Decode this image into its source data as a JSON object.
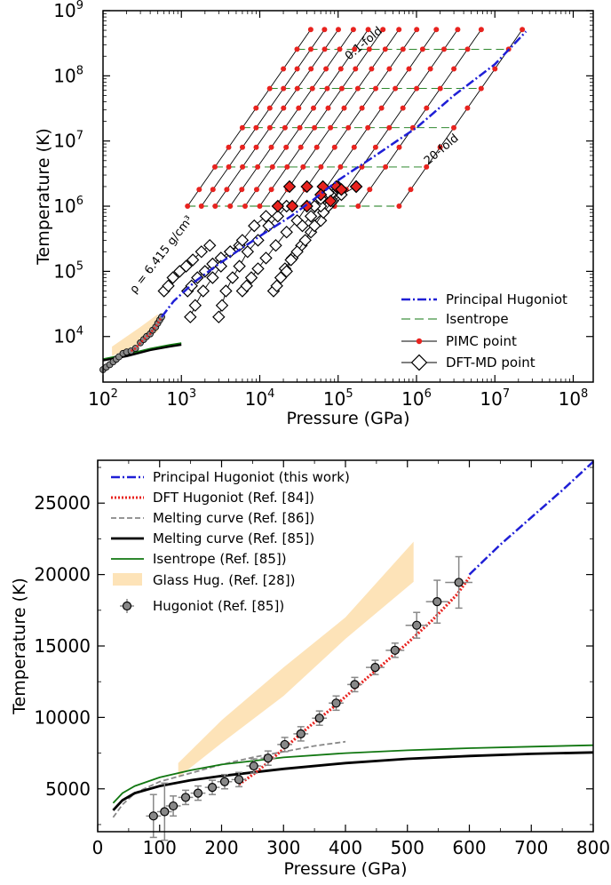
{
  "top": {
    "chart_data": {
      "type": "line",
      "xlabel": "Pressure (GPa)",
      "ylabel": "Temperature (K)",
      "xscale": "log",
      "yscale": "log",
      "xlim": [
        100,
        180000000
      ],
      "ylim": [
        2000,
        1000000000
      ],
      "x_ticks": [
        100,
        1000,
        10000,
        100000,
        1000000,
        10000000,
        100000000
      ],
      "y_ticks": [
        1000,
        10000,
        100000,
        1000000,
        10000000,
        100000000,
        1000000000
      ],
      "x_tick_labels": [
        {
          "base": "10",
          "exp": "2"
        },
        {
          "base": "10",
          "exp": "3"
        },
        {
          "base": "10",
          "exp": "4"
        },
        {
          "base": "10",
          "exp": "5"
        },
        {
          "base": "10",
          "exp": "6"
        },
        {
          "base": "10",
          "exp": "7"
        },
        {
          "base": "10",
          "exp": "8"
        }
      ],
      "y_tick_labels": [
        {
          "base": "10",
          "exp": "3"
        },
        {
          "base": "10",
          "exp": "4"
        },
        {
          "base": "10",
          "exp": "5"
        },
        {
          "base": "10",
          "exp": "6"
        },
        {
          "base": "10",
          "exp": "7"
        },
        {
          "base": "10",
          "exp": "8"
        },
        {
          "base": "10",
          "exp": "9"
        }
      ],
      "annotations": [
        {
          "text": "0.1-fold"
        },
        {
          "text": "20-fold"
        },
        {
          "text": "ρ = 6.415 g/cm³"
        }
      ],
      "legend": {
        "position": "lower-right",
        "entries": [
          "Principal Hugoniot",
          "Isentrope",
          "PIMC point",
          "DFT-MD point"
        ]
      },
      "colors": {
        "hugoniot": "#1f1fd6",
        "isentrope": "#117711",
        "pimc": "#e8231f",
        "glass": "#fde3b8"
      },
      "pimc_temperatures": [
        1000000,
        1800000,
        4000000,
        8000000,
        16000000,
        32000000,
        64000000,
        128000000,
        256000000,
        512000000
      ],
      "pimc_isochores_pressure_at_1e6K": [
        1200,
        1800,
        2700,
        4200,
        6500,
        10000,
        16000,
        27000,
        48000,
        90000,
        180000,
        600000
      ],
      "pimc_pressure_temperature_slope": 0.58,
      "dft_isochores": [
        [
          [
            600,
            50000
          ],
          [
            680,
            60000
          ],
          [
            780,
            80000
          ],
          [
            950,
            100000
          ],
          [
            1150,
            120000
          ],
          [
            1400,
            150000
          ],
          [
            1800,
            200000
          ],
          [
            2300,
            250000
          ]
        ],
        [
          [
            1200,
            50000
          ],
          [
            1350,
            60000
          ],
          [
            1600,
            80000
          ],
          [
            2000,
            100000
          ],
          [
            2500,
            130000
          ],
          [
            3200,
            160000
          ],
          [
            4200,
            200000
          ],
          [
            5500,
            250000
          ]
        ],
        [
          [
            1300,
            20000
          ],
          [
            1500,
            30000
          ],
          [
            1900,
            50000
          ],
          [
            2500,
            80000
          ],
          [
            3200,
            120000
          ],
          [
            4200,
            200000
          ],
          [
            6000,
            300000
          ],
          [
            8500,
            500000
          ],
          [
            12000,
            700000
          ]
        ],
        [
          [
            3000,
            20000
          ],
          [
            3300,
            30000
          ],
          [
            3700,
            50000
          ],
          [
            4500,
            80000
          ],
          [
            5500,
            120000
          ],
          [
            7000,
            200000
          ],
          [
            9500,
            300000
          ],
          [
            13000,
            500000
          ],
          [
            17000,
            700000
          ],
          [
            22000,
            1000000
          ]
        ],
        [
          [
            6000,
            50000
          ],
          [
            6800,
            60000
          ],
          [
            7800,
            80000
          ],
          [
            9500,
            110000
          ],
          [
            12000,
            160000
          ],
          [
            16000,
            250000
          ],
          [
            22000,
            400000
          ],
          [
            30000,
            600000
          ],
          [
            40000,
            1000000
          ]
        ],
        [
          [
            15000,
            50000
          ],
          [
            16500,
            60000
          ],
          [
            18500,
            80000
          ],
          [
            21000,
            110000
          ],
          [
            26000,
            160000
          ],
          [
            34000,
            250000
          ],
          [
            45000,
            400000
          ],
          [
            60000,
            600000
          ],
          [
            75000,
            1000000
          ],
          [
            110000,
            1500000
          ],
          [
            170000,
            2000000
          ]
        ],
        [
          [
            22000,
            100000
          ],
          [
            25000,
            150000
          ],
          [
            30000,
            200000
          ],
          [
            38000,
            300000
          ],
          [
            50000,
            500000
          ],
          [
            65000,
            800000
          ],
          [
            85000,
            1200000
          ],
          [
            110000,
            1800000
          ]
        ],
        [
          [
            35000,
            500000
          ],
          [
            45000,
            700000
          ],
          [
            60000,
            1000000
          ],
          [
            80000,
            1500000
          ],
          [
            100000,
            2000000
          ]
        ],
        [
          [
            50000,
            1000000
          ],
          [
            60000,
            1300000
          ],
          [
            75000,
            1600000
          ],
          [
            95000,
            2000000
          ]
        ]
      ],
      "dft_red_filled": [
        [
          17000,
          1000000
        ],
        [
          26000,
          1000000
        ],
        [
          40000,
          1000000
        ],
        [
          24000,
          2000000
        ],
        [
          40000,
          2000000
        ],
        [
          64000,
          2000000
        ],
        [
          95000,
          2000000
        ],
        [
          110000,
          1800000
        ],
        [
          170000,
          2000000
        ],
        [
          60000,
          1500000
        ],
        [
          80000,
          1200000
        ]
      ],
      "hugoniot_low": [
        [
          100,
          3100
        ],
        [
          110,
          3400
        ],
        [
          122,
          3700
        ],
        [
          135,
          4100
        ],
        [
          148,
          4500
        ],
        [
          160,
          4900
        ],
        [
          180,
          5500
        ],
        [
          200,
          5800
        ],
        [
          228,
          6000
        ],
        [
          260,
          6600
        ],
        [
          300,
          8000
        ],
        [
          330,
          9000
        ],
        [
          360,
          10000
        ],
        [
          400,
          11000
        ],
        [
          430,
          12500
        ],
        [
          470,
          14000
        ],
        [
          500,
          16000
        ],
        [
          530,
          18000
        ],
        [
          560,
          20000
        ]
      ],
      "principal_hugoniot": [
        [
          560,
          20000
        ],
        [
          800,
          35000
        ],
        [
          1500,
          70000
        ],
        [
          3000,
          130000
        ],
        [
          6000,
          230000
        ],
        [
          12000,
          400000
        ],
        [
          25000,
          700000
        ],
        [
          50000,
          1300000
        ],
        [
          100000,
          2500000
        ],
        [
          300000,
          6000000
        ],
        [
          1000000,
          16000000
        ],
        [
          3000000,
          50000000
        ],
        [
          10000000,
          150000000
        ],
        [
          25000000,
          480000000
        ]
      ],
      "melting_curve_85": [
        [
          100,
          4300
        ],
        [
          200,
          5000
        ],
        [
          400,
          6200
        ],
        [
          700,
          7000
        ],
        [
          1000,
          7500
        ]
      ],
      "isentrope_85": [
        [
          100,
          4500
        ],
        [
          200,
          5300
        ],
        [
          400,
          6500
        ],
        [
          700,
          7400
        ],
        [
          1000,
          7900
        ]
      ],
      "glass_hug": {
        "lower": [
          [
            130,
            5000
          ],
          [
            300,
            8000
          ],
          [
            500,
            12000
          ]
        ],
        "upper": [
          [
            130,
            7000
          ],
          [
            300,
            14000
          ],
          [
            500,
            22000
          ]
        ]
      }
    }
  },
  "bottom": {
    "chart_data": {
      "type": "line",
      "xlabel": "Pressure (GPa)",
      "ylabel": "Temperature (K)",
      "xlim": [
        0,
        800
      ],
      "ylim": [
        2000,
        28000
      ],
      "x_ticks": [
        0,
        100,
        200,
        300,
        400,
        500,
        600,
        700,
        800
      ],
      "y_ticks": [
        5000,
        10000,
        15000,
        20000,
        25000
      ],
      "legend": {
        "position": "top-left",
        "entries": [
          "Principal Hugoniot (this work)",
          "DFT Hugoniot (Ref. [84])",
          "Melting curve (Ref. [86])",
          "Melting curve (Ref. [85])",
          "Isentrope (Ref. [85])",
          "Glass Hug. (Ref. [28])",
          "Hugoniot (Ref. [85])"
        ]
      },
      "series": [
        {
          "name": "Principal Hugoniot (this work)",
          "color": "#1f1fd6",
          "points": [
            [
              600,
              20000
            ],
            [
              650,
              22100
            ],
            [
              700,
              24000
            ],
            [
              750,
              25900
            ],
            [
              800,
              27900
            ]
          ]
        },
        {
          "name": "DFT Hugoniot (Ref. [84])",
          "color": "#e8231f",
          "points": [
            [
              228,
              5300
            ],
            [
              260,
              6300
            ],
            [
              300,
              7800
            ],
            [
              340,
              9300
            ],
            [
              380,
              10700
            ],
            [
              420,
              12200
            ],
            [
              460,
              13700
            ],
            [
              500,
              15200
            ],
            [
              540,
              16800
            ],
            [
              580,
              18600
            ],
            [
              600,
              19800
            ]
          ]
        },
        {
          "name": "Melting curve (Ref. [86])",
          "color": "#888888",
          "points": [
            [
              25,
              3000
            ],
            [
              40,
              3900
            ],
            [
              60,
              4700
            ],
            [
              100,
              5500
            ],
            [
              150,
              6100
            ],
            [
              200,
              6700
            ],
            [
              250,
              7200
            ],
            [
              300,
              7600
            ],
            [
              350,
              8000
            ],
            [
              400,
              8300
            ]
          ]
        },
        {
          "name": "Melting curve (Ref. [85])",
          "color": "#000000",
          "points": [
            [
              25,
              3500
            ],
            [
              40,
              4200
            ],
            [
              60,
              4700
            ],
            [
              100,
              5200
            ],
            [
              150,
              5600
            ],
            [
              200,
              5900
            ],
            [
              300,
              6400
            ],
            [
              400,
              6800
            ],
            [
              500,
              7100
            ],
            [
              600,
              7300
            ],
            [
              700,
              7450
            ],
            [
              800,
              7550
            ]
          ]
        },
        {
          "name": "Isentrope (Ref. [85])",
          "color": "#117711",
          "points": [
            [
              25,
              4000
            ],
            [
              40,
              4700
            ],
            [
              60,
              5200
            ],
            [
              100,
              5800
            ],
            [
              150,
              6300
            ],
            [
              200,
              6700
            ],
            [
              300,
              7200
            ],
            [
              400,
              7500
            ],
            [
              500,
              7700
            ],
            [
              600,
              7850
            ],
            [
              700,
              7950
            ],
            [
              800,
              8050
            ]
          ]
        }
      ],
      "glass_hug": {
        "name": "Glass Hug. (Ref. [28])",
        "color": "#fde3b8",
        "upper": [
          [
            130,
            6800
          ],
          [
            200,
            9800
          ],
          [
            300,
            13500
          ],
          [
            400,
            17000
          ],
          [
            510,
            22300
          ]
        ],
        "lower": [
          [
            510,
            19500
          ],
          [
            400,
            15500
          ],
          [
            300,
            11500
          ],
          [
            200,
            8200
          ],
          [
            130,
            5800
          ]
        ]
      },
      "hugoniot_85": {
        "name": "Hugoniot (Ref. [85])",
        "points": [
          {
            "p": 90,
            "t": 3100,
            "ep": 12,
            "et": 1500
          },
          {
            "p": 108,
            "t": 3400,
            "ep": 12,
            "et": 2000
          },
          {
            "p": 122,
            "t": 3800,
            "ep": 12,
            "et": 700
          },
          {
            "p": 142,
            "t": 4400,
            "ep": 12,
            "et": 500
          },
          {
            "p": 162,
            "t": 4700,
            "ep": 12,
            "et": 500
          },
          {
            "p": 185,
            "t": 5100,
            "ep": 12,
            "et": 500
          },
          {
            "p": 205,
            "t": 5500,
            "ep": 12,
            "et": 500
          },
          {
            "p": 228,
            "t": 5650,
            "ep": 12,
            "et": 500
          },
          {
            "p": 252,
            "t": 6600,
            "ep": 12,
            "et": 500
          },
          {
            "p": 275,
            "t": 7150,
            "ep": 12,
            "et": 500
          },
          {
            "p": 302,
            "t": 8100,
            "ep": 12,
            "et": 500
          },
          {
            "p": 328,
            "t": 8850,
            "ep": 12,
            "et": 500
          },
          {
            "p": 358,
            "t": 9950,
            "ep": 12,
            "et": 500
          },
          {
            "p": 385,
            "t": 11000,
            "ep": 12,
            "et": 500
          },
          {
            "p": 415,
            "t": 12300,
            "ep": 12,
            "et": 500
          },
          {
            "p": 448,
            "t": 13500,
            "ep": 15,
            "et": 500
          },
          {
            "p": 480,
            "t": 14700,
            "ep": 15,
            "et": 500
          },
          {
            "p": 515,
            "t": 16450,
            "ep": 18,
            "et": 900
          },
          {
            "p": 548,
            "t": 18100,
            "ep": 18,
            "et": 1500
          },
          {
            "p": 583,
            "t": 19450,
            "ep": 22,
            "et": 1800
          }
        ]
      }
    }
  }
}
